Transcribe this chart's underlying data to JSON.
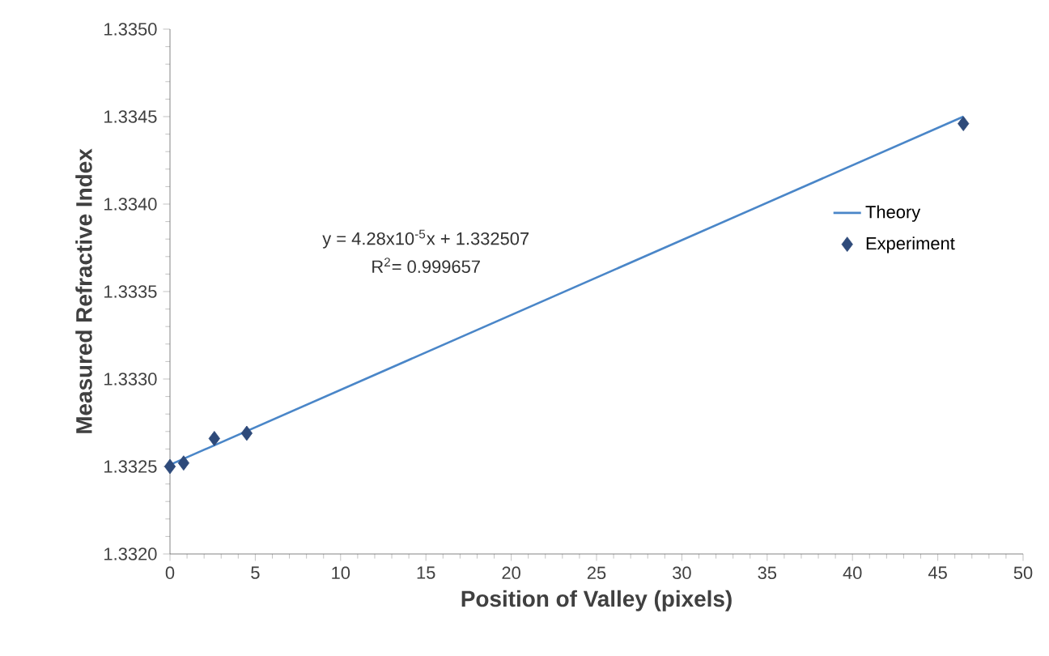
{
  "chart_data": {
    "type": "scatter",
    "xlabel": "Position of Valley (pixels)",
    "ylabel": "Measured Refractive Index",
    "xlim": [
      0,
      50
    ],
    "xticks": [
      0,
      5,
      10,
      15,
      20,
      25,
      30,
      35,
      40,
      45,
      50
    ],
    "ylim": [
      1.332,
      1.335
    ],
    "yticks": [
      {
        "value": 1.332,
        "label": "1.3320"
      },
      {
        "value": 1.3325,
        "label": "1.3325"
      },
      {
        "value": 1.333,
        "label": "1.3330"
      },
      {
        "value": 1.3335,
        "label": "1.3335"
      },
      {
        "value": 1.334,
        "label": "1.3340"
      },
      {
        "value": 1.3345,
        "label": "1.3345"
      },
      {
        "value": 1.335,
        "label": "1.3350"
      }
    ],
    "grid": false,
    "legend": "right",
    "annotations": [
      "y = 4.28x10$^{-5}$x + 1.332507",
      "R$^{2}$= 0.999657"
    ],
    "series": [
      {
        "name": "Theory",
        "type": "line",
        "color": "#4a86c8",
        "marker": "none",
        "line_style": "solid",
        "x": [
          0,
          46.5
        ],
        "values": [
          1.33251,
          1.3345
        ]
      },
      {
        "name": "Experiment",
        "color": "#2e4a7a",
        "marker": "diamond",
        "x": [
          0,
          0.8,
          2.6,
          4.5,
          46.5
        ],
        "values": [
          1.3325,
          1.33252,
          1.33266,
          1.33269,
          1.33446
        ]
      }
    ]
  }
}
